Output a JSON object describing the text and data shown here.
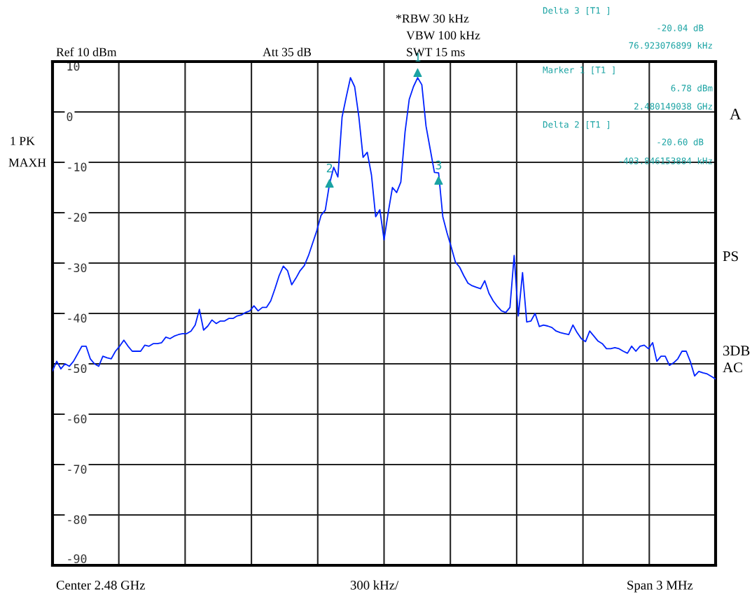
{
  "chart_data": {
    "type": "line",
    "categories": [
      null,
      null,
      null,
      null,
      null,
      null,
      null,
      null,
      null,
      null,
      null,
      null,
      null,
      null,
      null,
      null,
      null,
      null,
      null,
      null,
      null,
      null,
      null,
      null,
      null,
      null,
      null,
      null,
      null,
      null,
      null,
      null,
      null,
      null,
      null,
      null,
      null,
      null,
      null,
      null,
      null,
      null,
      null,
      null,
      null,
      null,
      null,
      null,
      null,
      null,
      null,
      null,
      null,
      null,
      null,
      null,
      null,
      null,
      null,
      null,
      null,
      null,
      null,
      null,
      null,
      null,
      null,
      null,
      null,
      null,
      null,
      null,
      null,
      null,
      null,
      null,
      null,
      null,
      null,
      null,
      null,
      null,
      null,
      null,
      null,
      null,
      null,
      null,
      null,
      null,
      null,
      null,
      null,
      null,
      null,
      null,
      null,
      null,
      null,
      null,
      null,
      null,
      null,
      null,
      null,
      null,
      null,
      null,
      null,
      null,
      null,
      null,
      null,
      null,
      null,
      null,
      null,
      null,
      null,
      null,
      null,
      null,
      null,
      null,
      null,
      null,
      null,
      null,
      null,
      null,
      null,
      null,
      null,
      null,
      null,
      null,
      null,
      null,
      null,
      null,
      null,
      null,
      null,
      null,
      null,
      null,
      null,
      null,
      null,
      null,
      null,
      null,
      null,
      null,
      null,
      null,
      null,
      null,
      null
    ],
    "series": [
      {
        "type": "line",
        "color": "#0022ff",
        "values": [
          -51.4,
          -49.5,
          -51,
          -50,
          -50.5,
          -49.5,
          -48,
          -46.5,
          -46.5,
          -49,
          -50,
          -50.5,
          -48.5,
          -48.8,
          -49,
          -47.5,
          -46.5,
          -45.3,
          -46.5,
          -47.5,
          -47.5,
          -47.5,
          -46.3,
          -46.5,
          -46,
          -46,
          -45.8,
          -44.7,
          -45,
          -44.5,
          -44.2,
          -44,
          -44,
          -43.5,
          -42.3,
          -39.2,
          -43.3,
          -42.5,
          -41.3,
          -42,
          -41.5,
          -41.5,
          -41,
          -41,
          -40.5,
          -40.3,
          -39.8,
          -39.5,
          -38.5,
          -39.5,
          -38.8,
          -38.8,
          -37.5,
          -35.1,
          -32.5,
          -30.6,
          -31.5,
          -34.3,
          -33,
          -31.5,
          -30.5,
          -28.5,
          -26,
          -23.5,
          -20.5,
          -19.5,
          -14.3,
          -11,
          -12.9,
          -1,
          3,
          6.8,
          5,
          -1,
          -9,
          -8,
          -12.5,
          -20.8,
          -19.4,
          -25.4,
          -19.9,
          -15,
          -16,
          -13.9,
          -4,
          2.5,
          5,
          6.8,
          5.4,
          -2.8,
          -7.4,
          -12,
          -12.1,
          -20.8,
          -24,
          -26.8,
          -29.8,
          -30.8,
          -32.5,
          -34,
          -34.5,
          -34.8,
          -35.1,
          -33.5,
          -36,
          -37.5,
          -38.6,
          -39.5,
          -39.8,
          -38.8,
          -28.5,
          -40.5,
          -31.9,
          -41.7,
          -41.5,
          -40,
          -42.6,
          -42.3,
          -42.5,
          -42.8,
          -43.5,
          -43.8,
          -44,
          -44.2,
          -42.3,
          -43.8,
          -45,
          -45.6,
          -43.5,
          -44.5,
          -45.5,
          -46,
          -47,
          -47,
          -46.8,
          -47,
          -47.5,
          -47.9,
          -46.5,
          -47.5,
          -46.5,
          -46.3,
          -47,
          -45.8,
          -49.5,
          -48.5,
          -48.5,
          -50.3,
          -49.8,
          -49,
          -47.5,
          -47.5,
          -49.6,
          -52.4,
          -51.5,
          -51.8,
          -52,
          -52.5,
          -53
        ]
      },
      {
        "type": "scatter",
        "name": "2",
        "color": "#1aa3a3",
        "marker": "triangle",
        "values": [
          null,
          null,
          null,
          null,
          null,
          null,
          null,
          null,
          null,
          null,
          null,
          null,
          null,
          null,
          null,
          null,
          null,
          null,
          null,
          null,
          null,
          null,
          null,
          null,
          null,
          null,
          null,
          null,
          null,
          null,
          null,
          null,
          null,
          null,
          null,
          null,
          null,
          null,
          null,
          null,
          null,
          null,
          null,
          null,
          null,
          null,
          null,
          null,
          null,
          null,
          null,
          null,
          null,
          null,
          null,
          null,
          null,
          null,
          null,
          null,
          null,
          null,
          null,
          null,
          null,
          null,
          -14.2,
          null,
          null,
          null,
          null,
          null,
          null,
          null,
          null,
          null,
          null,
          null,
          null,
          null,
          null,
          null,
          null,
          null,
          null,
          null,
          null,
          null,
          null,
          null,
          null,
          null,
          null,
          null,
          null,
          null,
          null,
          null,
          null,
          null,
          null,
          null,
          null,
          null,
          null,
          null,
          null,
          null,
          null,
          null,
          null,
          null,
          null,
          null,
          null,
          null,
          null,
          null,
          null,
          null,
          null,
          null,
          null,
          null,
          null,
          null,
          null,
          null,
          null,
          null,
          null,
          null,
          null,
          null,
          null,
          null,
          null,
          null,
          null,
          null,
          null,
          null,
          null,
          null,
          null,
          null,
          null,
          null,
          null,
          null,
          null,
          null,
          null,
          null,
          null,
          null,
          null,
          null,
          null
        ]
      },
      {
        "type": "scatter",
        "name": "1",
        "color": "#1aa3a3",
        "marker": "triangle",
        "values": [
          null,
          null,
          null,
          null,
          null,
          null,
          null,
          null,
          null,
          null,
          null,
          null,
          null,
          null,
          null,
          null,
          null,
          null,
          null,
          null,
          null,
          null,
          null,
          null,
          null,
          null,
          null,
          null,
          null,
          null,
          null,
          null,
          null,
          null,
          null,
          null,
          null,
          null,
          null,
          null,
          null,
          null,
          null,
          null,
          null,
          null,
          null,
          null,
          null,
          null,
          null,
          null,
          null,
          null,
          null,
          null,
          null,
          null,
          null,
          null,
          null,
          null,
          null,
          null,
          null,
          null,
          null,
          null,
          null,
          null,
          null,
          null,
          null,
          null,
          null,
          null,
          null,
          null,
          null,
          null,
          null,
          null,
          null,
          null,
          null,
          null,
          null,
          7.8,
          null,
          null,
          null,
          null,
          null,
          null,
          null,
          null,
          null,
          null,
          null,
          null,
          null,
          null,
          null,
          null,
          null,
          null,
          null,
          null,
          null,
          null,
          null,
          null,
          null,
          null,
          null,
          null,
          null,
          null,
          null,
          null,
          null,
          null,
          null,
          null,
          null,
          null,
          null,
          null,
          null,
          null,
          null,
          null,
          null,
          null,
          null,
          null,
          null,
          null,
          null,
          null,
          null,
          null,
          null,
          null,
          null,
          null,
          null,
          null,
          null,
          null,
          null,
          null,
          null,
          null,
          null,
          null,
          null,
          null,
          null
        ]
      },
      {
        "type": "scatter",
        "name": "3",
        "color": "#1aa3a3",
        "marker": "triangle",
        "values": [
          null,
          null,
          null,
          null,
          null,
          null,
          null,
          null,
          null,
          null,
          null,
          null,
          null,
          null,
          null,
          null,
          null,
          null,
          null,
          null,
          null,
          null,
          null,
          null,
          null,
          null,
          null,
          null,
          null,
          null,
          null,
          null,
          null,
          null,
          null,
          null,
          null,
          null,
          null,
          null,
          null,
          null,
          null,
          null,
          null,
          null,
          null,
          null,
          null,
          null,
          null,
          null,
          null,
          null,
          null,
          null,
          null,
          null,
          null,
          null,
          null,
          null,
          null,
          null,
          null,
          null,
          null,
          null,
          null,
          null,
          null,
          null,
          null,
          null,
          null,
          null,
          null,
          null,
          null,
          null,
          null,
          null,
          null,
          null,
          null,
          null,
          null,
          null,
          null,
          null,
          null,
          null,
          -13.6,
          null,
          null,
          null,
          null,
          null,
          null,
          null,
          null,
          null,
          null,
          null,
          null,
          null,
          null,
          null,
          null,
          null,
          null,
          null,
          null,
          null,
          null,
          null,
          null,
          null,
          null,
          null,
          null,
          null,
          null,
          null,
          null,
          null,
          null,
          null,
          null,
          null,
          null,
          null,
          null,
          null,
          null,
          null,
          null,
          null,
          null,
          null,
          null,
          null,
          null,
          null,
          null,
          null,
          null,
          null,
          null,
          null,
          null,
          null,
          null,
          null,
          null,
          null,
          null,
          null,
          null
        ]
      }
    ],
    "ylim": [
      -90,
      10
    ],
    "yticks": [
      10,
      0,
      -10,
      -20,
      -30,
      -40,
      -50,
      -60,
      -70,
      -80,
      -90
    ],
    "grid": true,
    "tick_labels": "y",
    "annotations": [
      "Ref 10 dBm",
      "Att 35 dB",
      "*RBW 30 kHz",
      "VBW 100 kHz",
      "SWT 15 ms",
      "Delta 3 [T1 ]",
      "-20.04 dB",
      "76.923076899 kHz",
      "Marker 1 [T1 ]",
      "6.78 dBm",
      "2.480149038 GHz",
      "Delta 2 [T1 ]",
      "-20.60 dB",
      "-403.846153884 kHz",
      "1 PK",
      "MAXH",
      "A",
      "PS",
      "3DB",
      "AC",
      "Center 2.48 GHz",
      "300 kHz/",
      "Span 3 MHz"
    ]
  }
}
